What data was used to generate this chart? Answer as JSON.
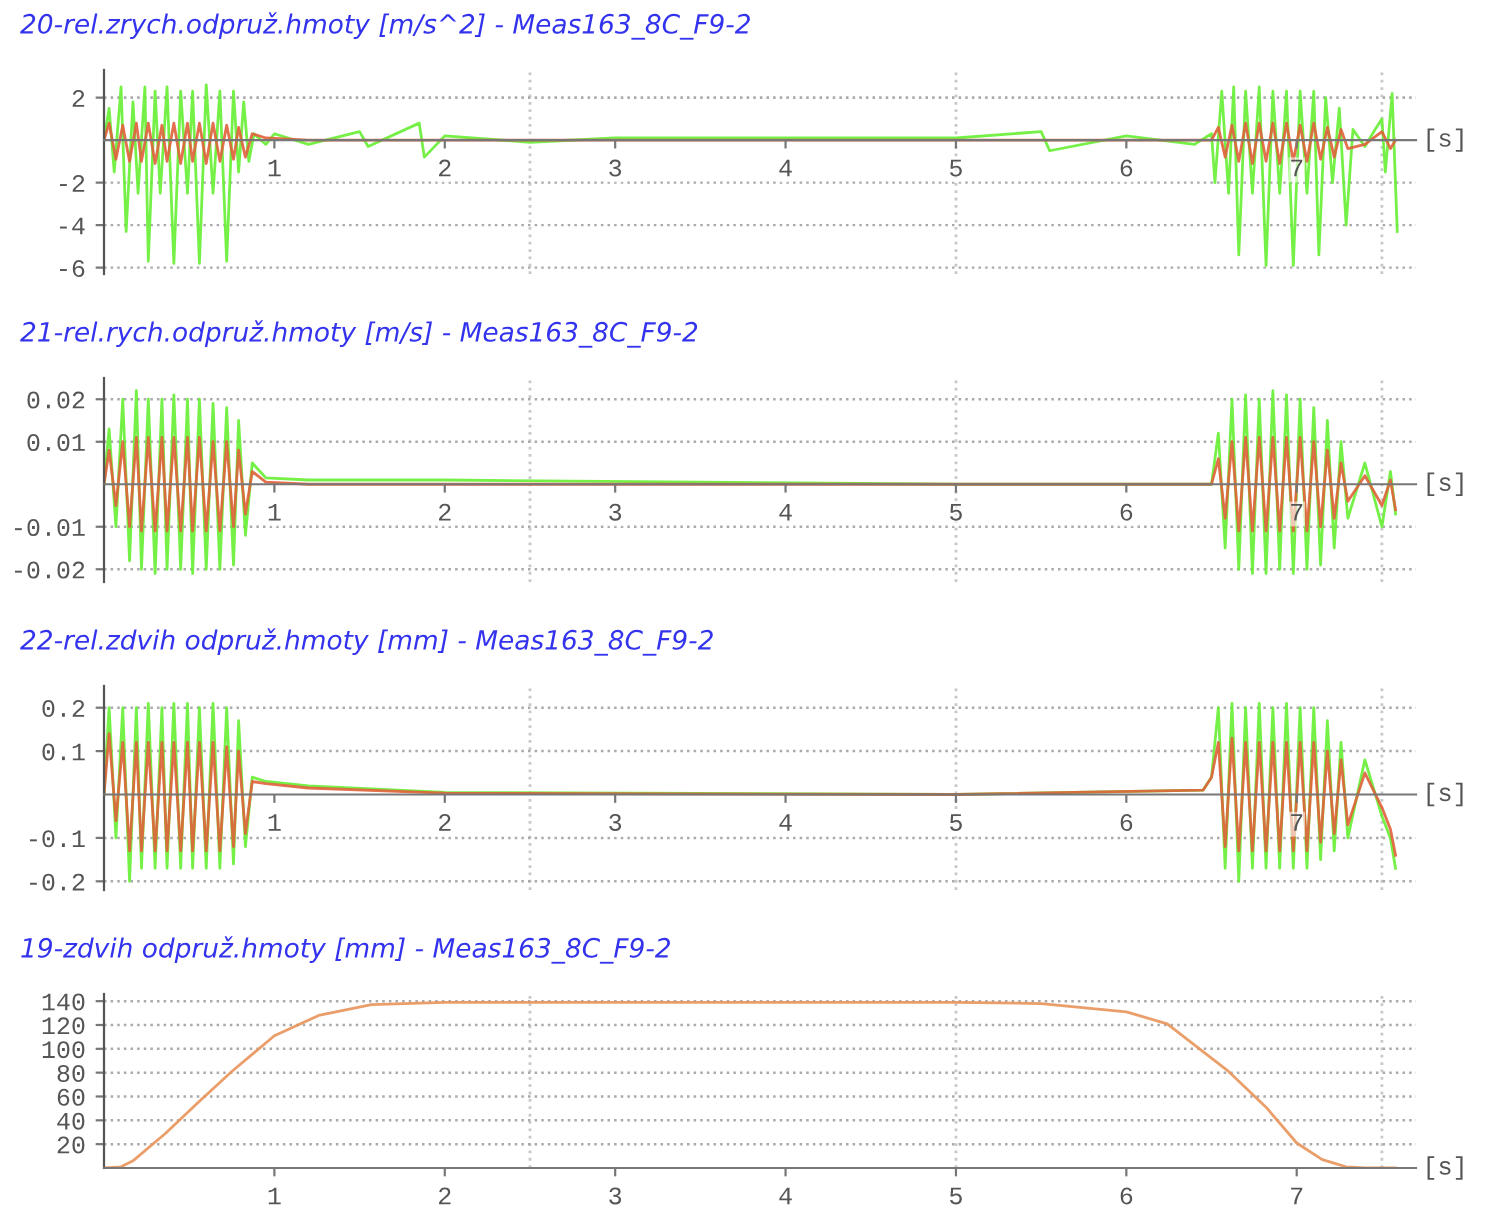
{
  "chart_data": [
    {
      "type": "line",
      "title": "20-rel.zrych.odpruž.hmoty [m/s^2] - Meas163_8C_F9-2",
      "xlabel": "[s]",
      "xlim": [
        0,
        7.7
      ],
      "xticks": [
        1,
        2,
        3,
        4,
        5,
        6,
        7
      ],
      "ylim": [
        -6.3,
        3.3
      ],
      "yticks": [
        -6,
        -4,
        -2,
        2
      ],
      "grid": "y",
      "ref_lines": [
        {
          "axis": "x",
          "value": 2.5,
          "color": "#c8c8c8",
          "line_style": "dotted"
        },
        {
          "axis": "x",
          "value": 5,
          "color": "#c8c8c8",
          "line_style": "dotted"
        },
        {
          "axis": "x",
          "value": 7.5,
          "color": "#c8c8c8",
          "line_style": "dotted"
        }
      ],
      "series": [
        {
          "color": "#66ee33",
          "x": [
            0,
            0.03,
            0.06,
            0.1,
            0.13,
            0.17,
            0.2,
            0.24,
            0.26,
            0.3,
            0.33,
            0.37,
            0.41,
            0.45,
            0.49,
            0.52,
            0.56,
            0.6,
            0.64,
            0.68,
            0.72,
            0.76,
            0.79,
            0.82,
            0.85,
            0.88,
            0.95,
            1.0,
            1.2,
            1.5,
            1.55,
            1.85,
            1.88,
            2.0,
            2.5,
            3.0,
            4.0,
            5.0,
            5.5,
            5.55,
            6.0,
            6.4,
            6.5,
            6.52,
            6.56,
            6.6,
            6.63,
            6.66,
            6.7,
            6.74,
            6.78,
            6.82,
            6.86,
            6.9,
            6.94,
            6.98,
            7.02,
            7.06,
            7.1,
            7.13,
            7.17,
            7.21,
            7.25,
            7.29,
            7.33,
            7.4,
            7.46,
            7.5,
            7.52,
            7.56,
            7.59
          ],
          "values": [
            0,
            1.5,
            -1.5,
            2.5,
            -4.3,
            1.8,
            -2.5,
            2.5,
            -5.7,
            2.3,
            -2.5,
            2.5,
            -5.8,
            2.3,
            -2.5,
            2.3,
            -5.8,
            2.6,
            -2.5,
            2.3,
            -5.7,
            2.3,
            -1.5,
            1.8,
            -1.0,
            0.3,
            -0.2,
            0.3,
            -0.2,
            0.4,
            -0.3,
            0.8,
            -0.8,
            0.2,
            -0.1,
            0.1,
            0.1,
            0.1,
            0.4,
            -0.5,
            0.2,
            -0.2,
            0.3,
            -2.0,
            2.3,
            -2.5,
            2.5,
            -5.4,
            2.3,
            -2.5,
            2.5,
            -5.9,
            2.3,
            -2.5,
            2.3,
            -5.9,
            2.3,
            -2.5,
            2.3,
            -5.4,
            2.0,
            -2.0,
            1.5,
            -4.0,
            0.5,
            -0.3,
            0.5,
            1.0,
            -1.5,
            2.2,
            -4.3
          ]
        },
        {
          "color": "#e0603a",
          "x": [
            0,
            0.03,
            0.07,
            0.11,
            0.15,
            0.19,
            0.22,
            0.26,
            0.3,
            0.34,
            0.37,
            0.41,
            0.45,
            0.49,
            0.52,
            0.56,
            0.6,
            0.64,
            0.68,
            0.72,
            0.76,
            0.79,
            0.83,
            0.87,
            0.95,
            1.2,
            2.0,
            5.0,
            6.45,
            6.5,
            6.54,
            6.58,
            6.62,
            6.66,
            6.7,
            6.74,
            6.78,
            6.82,
            6.86,
            6.9,
            6.94,
            6.98,
            7.02,
            7.06,
            7.1,
            7.14,
            7.18,
            7.22,
            7.26,
            7.3,
            7.4,
            7.5,
            7.55,
            7.58
          ],
          "values": [
            0,
            0.8,
            -0.9,
            0.7,
            -1.0,
            0.8,
            -1.0,
            0.8,
            -1.1,
            0.7,
            -1.0,
            0.8,
            -1.1,
            0.8,
            -1.0,
            0.8,
            -1.1,
            0.8,
            -1.0,
            0.7,
            -0.9,
            0.6,
            -0.8,
            0.3,
            0.1,
            0,
            0,
            0,
            0,
            0,
            0.6,
            -0.8,
            0.7,
            -1.0,
            0.8,
            -1.1,
            0.8,
            -1.0,
            0.8,
            -1.1,
            0.8,
            -1.0,
            0.7,
            -1.0,
            0.8,
            -0.9,
            0.6,
            -0.8,
            0.5,
            -0.4,
            -0.2,
            0.4,
            -0.4,
            0
          ]
        }
      ]
    },
    {
      "type": "line",
      "title": "21-rel.rych.odpruž.hmoty [m/s] - Meas163_8C_F9-2",
      "xlabel": "[s]",
      "xlim": [
        0,
        7.7
      ],
      "xticks": [
        1,
        2,
        3,
        4,
        5,
        6,
        7
      ],
      "ylim": [
        -0.023,
        0.025
      ],
      "yticks": [
        -0.02,
        -0.01,
        0.01,
        0.02
      ],
      "grid": "y",
      "ref_lines": [
        {
          "axis": "x",
          "value": 2.5,
          "color": "#c8c8c8",
          "line_style": "dotted"
        },
        {
          "axis": "x",
          "value": 5,
          "color": "#c8c8c8",
          "line_style": "dotted"
        },
        {
          "axis": "x",
          "value": 7.5,
          "color": "#c8c8c8",
          "line_style": "dotted"
        }
      ],
      "series": [
        {
          "color": "#66ee33",
          "x": [
            0,
            0.03,
            0.07,
            0.11,
            0.15,
            0.19,
            0.22,
            0.26,
            0.3,
            0.34,
            0.37,
            0.41,
            0.45,
            0.49,
            0.52,
            0.56,
            0.6,
            0.64,
            0.68,
            0.72,
            0.76,
            0.79,
            0.83,
            0.87,
            0.95,
            1.2,
            2.0,
            5.0,
            6.45,
            6.5,
            6.54,
            6.58,
            6.62,
            6.66,
            6.7,
            6.74,
            6.78,
            6.82,
            6.86,
            6.9,
            6.94,
            6.98,
            7.02,
            7.06,
            7.1,
            7.14,
            7.18,
            7.22,
            7.26,
            7.3,
            7.4,
            7.5,
            7.55,
            7.58
          ],
          "values": [
            0,
            0.013,
            -0.01,
            0.02,
            -0.018,
            0.022,
            -0.02,
            0.02,
            -0.021,
            0.02,
            -0.02,
            0.021,
            -0.02,
            0.02,
            -0.021,
            0.02,
            -0.02,
            0.019,
            -0.02,
            0.018,
            -0.019,
            0.015,
            -0.012,
            0.005,
            0.0015,
            0.001,
            0.001,
            0,
            0,
            0,
            0.012,
            -0.015,
            0.02,
            -0.02,
            0.021,
            -0.021,
            0.02,
            -0.021,
            0.022,
            -0.02,
            0.021,
            -0.021,
            0.02,
            -0.02,
            0.018,
            -0.019,
            0.015,
            -0.015,
            0.01,
            -0.008,
            0.005,
            -0.01,
            0.003,
            -0.007
          ]
        },
        {
          "color": "#e0603a",
          "x": [
            0,
            0.03,
            0.07,
            0.11,
            0.15,
            0.19,
            0.22,
            0.26,
            0.3,
            0.34,
            0.37,
            0.41,
            0.45,
            0.49,
            0.52,
            0.56,
            0.6,
            0.64,
            0.68,
            0.72,
            0.76,
            0.79,
            0.83,
            0.87,
            0.95,
            1.2,
            2.0,
            5.0,
            6.45,
            6.5,
            6.54,
            6.58,
            6.62,
            6.66,
            6.7,
            6.74,
            6.78,
            6.82,
            6.86,
            6.9,
            6.94,
            6.98,
            7.02,
            7.06,
            7.1,
            7.14,
            7.18,
            7.22,
            7.26,
            7.3,
            7.4,
            7.5,
            7.55,
            7.58
          ],
          "values": [
            0,
            0.008,
            -0.005,
            0.01,
            -0.01,
            0.011,
            -0.011,
            0.011,
            -0.011,
            0.011,
            -0.011,
            0.011,
            -0.011,
            0.011,
            -0.011,
            0.011,
            -0.011,
            0.01,
            -0.011,
            0.01,
            -0.01,
            0.008,
            -0.007,
            0.003,
            0.0005,
            0,
            0,
            0,
            0,
            0,
            0.006,
            -0.008,
            0.01,
            -0.011,
            0.011,
            -0.011,
            0.011,
            -0.011,
            0.011,
            -0.011,
            0.011,
            -0.011,
            0.011,
            -0.011,
            0.01,
            -0.01,
            0.008,
            -0.008,
            0.005,
            -0.004,
            0.002,
            -0.005,
            0.001,
            -0.006
          ]
        }
      ]
    },
    {
      "type": "line",
      "title": "22-rel.zdvih odpruž.hmoty [mm] - Meas163_8C_F9-2",
      "xlabel": "[s]",
      "xlim": [
        0,
        7.7
      ],
      "xticks": [
        1,
        2,
        3,
        4,
        5,
        6,
        7
      ],
      "ylim": [
        -0.22,
        0.25
      ],
      "yticks": [
        -0.2,
        -0.1,
        0.1,
        0.2
      ],
      "grid": "y",
      "ref_lines": [
        {
          "axis": "x",
          "value": 2.5,
          "color": "#c8c8c8",
          "line_style": "dotted"
        },
        {
          "axis": "x",
          "value": 5,
          "color": "#c8c8c8",
          "line_style": "dotted"
        },
        {
          "axis": "x",
          "value": 7.5,
          "color": "#c8c8c8",
          "line_style": "dotted"
        }
      ],
      "series": [
        {
          "color": "#66ee33",
          "x": [
            0,
            0.03,
            0.07,
            0.11,
            0.15,
            0.19,
            0.22,
            0.26,
            0.3,
            0.34,
            0.37,
            0.41,
            0.45,
            0.49,
            0.52,
            0.56,
            0.6,
            0.64,
            0.68,
            0.72,
            0.76,
            0.79,
            0.83,
            0.87,
            0.95,
            1.2,
            2.0,
            5.0,
            6.45,
            6.5,
            6.54,
            6.58,
            6.62,
            6.66,
            6.7,
            6.74,
            6.78,
            6.82,
            6.86,
            6.9,
            6.94,
            6.98,
            7.02,
            7.06,
            7.1,
            7.14,
            7.18,
            7.22,
            7.26,
            7.3,
            7.4,
            7.5,
            7.55,
            7.58
          ],
          "values": [
            0,
            0.2,
            -0.1,
            0.2,
            -0.2,
            0.2,
            -0.17,
            0.21,
            -0.17,
            0.2,
            -0.17,
            0.21,
            -0.17,
            0.21,
            -0.17,
            0.2,
            -0.17,
            0.21,
            -0.17,
            0.2,
            -0.16,
            0.17,
            -0.12,
            0.04,
            0.03,
            0.02,
            0.005,
            0,
            0.01,
            0.04,
            0.2,
            -0.17,
            0.21,
            -0.2,
            0.2,
            -0.17,
            0.21,
            -0.17,
            0.2,
            -0.17,
            0.21,
            -0.17,
            0.2,
            -0.17,
            0.2,
            -0.15,
            0.17,
            -0.13,
            0.12,
            -0.1,
            0.08,
            -0.05,
            -0.1,
            -0.17
          ]
        },
        {
          "color": "#e0603a",
          "x": [
            0,
            0.03,
            0.07,
            0.11,
            0.15,
            0.19,
            0.22,
            0.26,
            0.3,
            0.34,
            0.37,
            0.41,
            0.45,
            0.49,
            0.52,
            0.56,
            0.6,
            0.64,
            0.68,
            0.72,
            0.76,
            0.79,
            0.83,
            0.87,
            0.95,
            1.2,
            2.0,
            5.0,
            6.45,
            6.5,
            6.54,
            6.58,
            6.62,
            6.66,
            6.7,
            6.74,
            6.78,
            6.82,
            6.86,
            6.9,
            6.94,
            6.98,
            7.02,
            7.06,
            7.1,
            7.14,
            7.18,
            7.22,
            7.26,
            7.3,
            7.4,
            7.5,
            7.55,
            7.58
          ],
          "values": [
            0,
            0.14,
            -0.06,
            0.12,
            -0.13,
            0.12,
            -0.13,
            0.12,
            -0.13,
            0.12,
            -0.13,
            0.12,
            -0.13,
            0.12,
            -0.13,
            0.12,
            -0.13,
            0.12,
            -0.13,
            0.11,
            -0.12,
            0.1,
            -0.09,
            0.03,
            0.025,
            0.015,
            0.003,
            0,
            0.01,
            0.04,
            0.12,
            -0.12,
            0.13,
            -0.13,
            0.12,
            -0.13,
            0.12,
            -0.13,
            0.12,
            -0.13,
            0.12,
            -0.13,
            0.12,
            -0.13,
            0.12,
            -0.11,
            0.1,
            -0.09,
            0.08,
            -0.07,
            0.05,
            -0.03,
            -0.08,
            -0.14
          ]
        }
      ]
    },
    {
      "type": "line",
      "title": "19-zdvih odpruž.hmoty [mm] - Meas163_8C_F9-2",
      "xlabel": "[s]",
      "xlim": [
        0,
        7.7
      ],
      "xticks": [
        1,
        2,
        3,
        4,
        5,
        6,
        7
      ],
      "ylim": [
        0,
        146
      ],
      "yticks": [
        20,
        40,
        60,
        80,
        100,
        120,
        140
      ],
      "grid": "y",
      "ref_lines": [
        {
          "axis": "x",
          "value": 2.5,
          "color": "#c8c8c8",
          "line_style": "dotted"
        },
        {
          "axis": "x",
          "value": 5,
          "color": "#c8c8c8",
          "line_style": "dotted"
        },
        {
          "axis": "x",
          "value": 7.5,
          "color": "#c8c8c8",
          "line_style": "dotted"
        }
      ],
      "series": [
        {
          "color": "#e8935a",
          "x": [
            0,
            0.1,
            0.17,
            0.36,
            0.56,
            0.75,
            1.0,
            1.26,
            1.57,
            2.0,
            3.0,
            5.0,
            5.5,
            6.0,
            6.24,
            6.6,
            6.82,
            7.0,
            7.15,
            7.29,
            7.4,
            7.58
          ],
          "values": [
            0,
            1,
            6,
            29,
            56,
            81,
            111,
            128,
            137,
            139,
            139,
            139,
            138,
            131,
            121,
            81,
            51,
            21,
            7,
            1,
            0,
            0
          ]
        }
      ]
    }
  ]
}
